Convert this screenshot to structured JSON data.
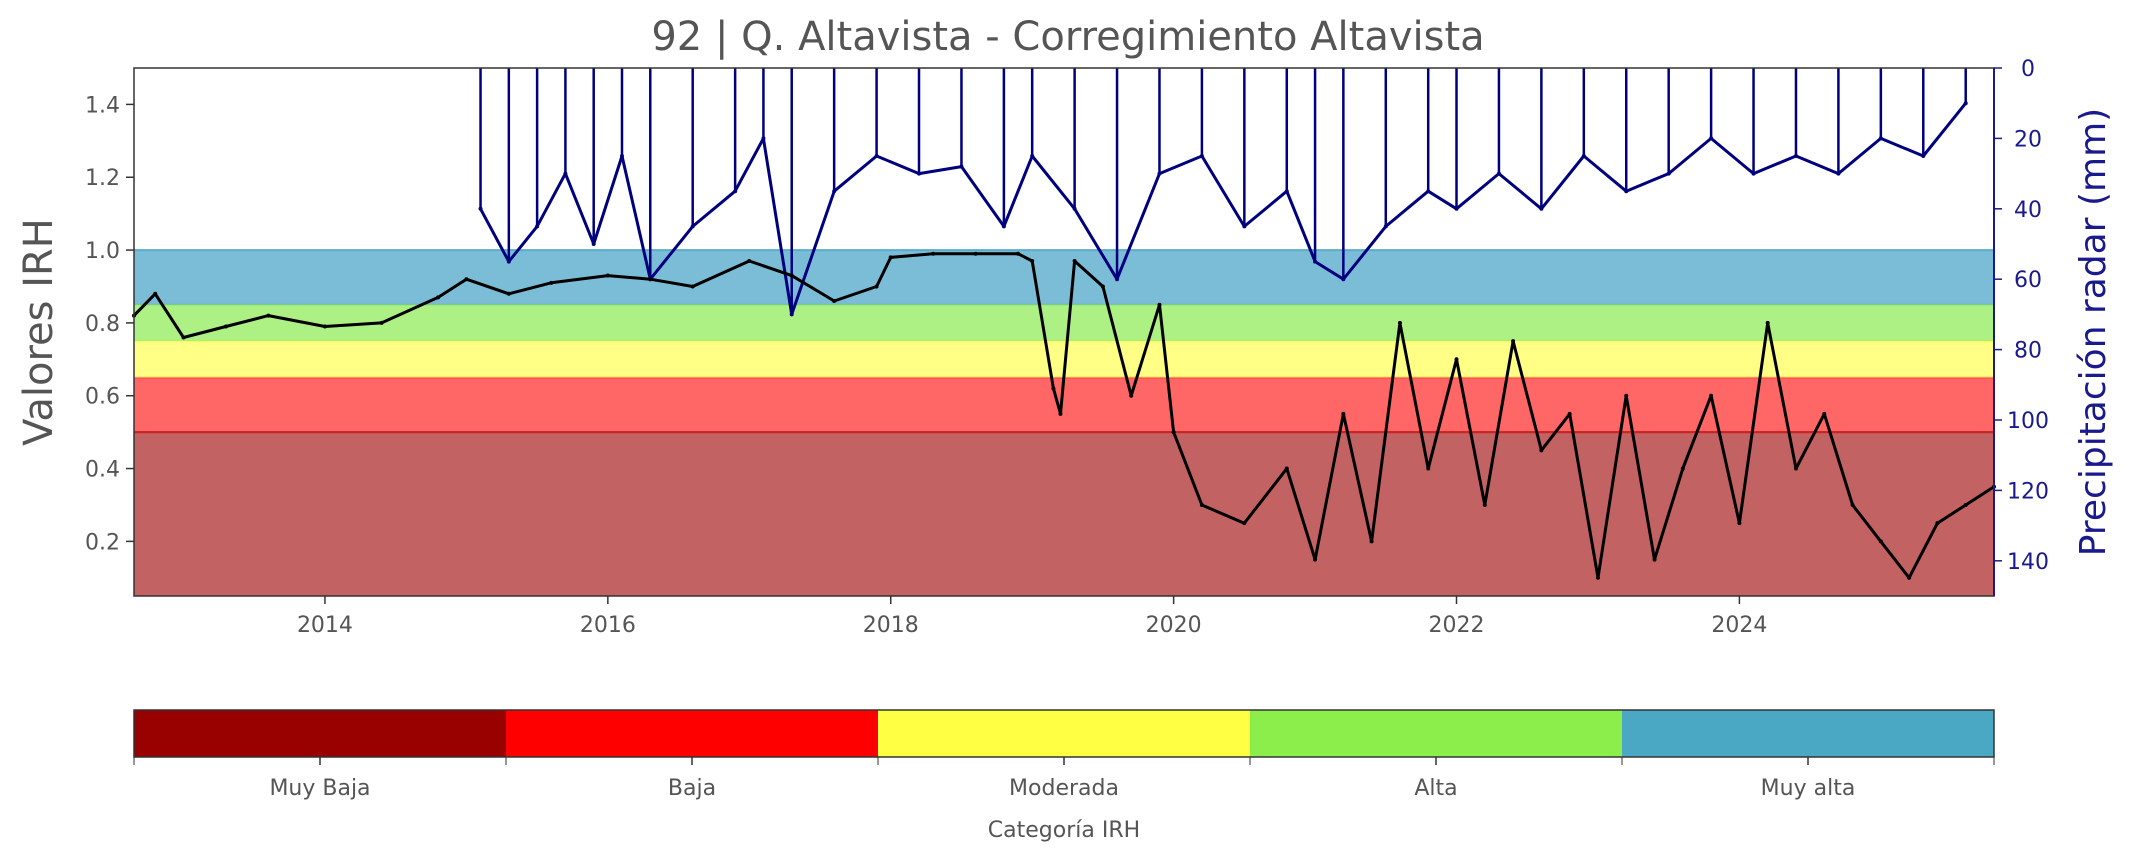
{
  "chart_data": {
    "type": "line",
    "title": "92 | Q. Altavista - Corregimiento Altavista",
    "ylabel": "Valores IRH",
    "ylabel_right": "Precipitación radar (mm)",
    "xlabel": "",
    "xlim": [
      2012.65,
      2025.8
    ],
    "ylim": [
      0.05,
      1.5
    ],
    "ylim_right": [
      150,
      0
    ],
    "x_ticks": [
      "2014",
      "2016",
      "2018",
      "2020",
      "2022",
      "2024"
    ],
    "y_ticks": [
      "0.2",
      "0.4",
      "0.6",
      "0.8",
      "1.0",
      "1.2",
      "1.4"
    ],
    "y_ticks_right": [
      "0",
      "20",
      "40",
      "60",
      "80",
      "100",
      "120",
      "140"
    ],
    "category_bands": [
      {
        "name": "Muy Baja",
        "from": 0.05,
        "to": 0.5,
        "color": "#b33b3b"
      },
      {
        "name": "Baja",
        "from": 0.5,
        "to": 0.65,
        "color": "#ff4040"
      },
      {
        "name": "Moderada",
        "from": 0.65,
        "to": 0.75,
        "color": "#ffff66"
      },
      {
        "name": "Alta",
        "from": 0.75,
        "to": 0.85,
        "color": "#99ee66"
      },
      {
        "name": "Muy alta",
        "from": 0.85,
        "to": 1.0,
        "color": "#5aaccc"
      }
    ],
    "series": [
      {
        "color": "#000000",
        "axis": "left",
        "x": [
          2012.65,
          2012.8,
          2013.0,
          2013.3,
          2013.6,
          2014.0,
          2014.4,
          2014.8,
          2015.0,
          2015.3,
          2015.6,
          2016.0,
          2016.3,
          2016.6,
          2017.0,
          2017.3,
          2017.6,
          2017.9,
          2018.0,
          2018.3,
          2018.6,
          2018.9,
          2019.0,
          2019.15,
          2019.2,
          2019.3,
          2019.5,
          2019.7,
          2019.9,
          2020.0,
          2020.2,
          2020.5,
          2020.8,
          2021.0,
          2021.2,
          2021.4,
          2021.6,
          2021.8,
          2022.0,
          2022.2,
          2022.4,
          2022.6,
          2022.8,
          2023.0,
          2023.2,
          2023.4,
          2023.6,
          2023.8,
          2024.0,
          2024.2,
          2024.4,
          2024.6,
          2024.8,
          2025.0,
          2025.2,
          2025.4,
          2025.6,
          2025.8
        ],
        "y": [
          0.82,
          0.88,
          0.76,
          0.79,
          0.82,
          0.79,
          0.8,
          0.87,
          0.92,
          0.88,
          0.91,
          0.93,
          0.92,
          0.9,
          0.97,
          0.93,
          0.86,
          0.9,
          0.98,
          0.99,
          0.99,
          0.99,
          0.97,
          0.62,
          0.55,
          0.97,
          0.9,
          0.6,
          0.85,
          0.5,
          0.3,
          0.25,
          0.4,
          0.15,
          0.55,
          0.2,
          0.8,
          0.4,
          0.7,
          0.3,
          0.75,
          0.45,
          0.55,
          0.1,
          0.6,
          0.15,
          0.4,
          0.6,
          0.25,
          0.8,
          0.4,
          0.55,
          0.3,
          0.2,
          0.1,
          0.25,
          0.3,
          0.35
        ]
      },
      {
        "color": "#00007f",
        "axis": "right",
        "x": [
          2015.1,
          2015.3,
          2015.5,
          2015.7,
          2015.9,
          2016.1,
          2016.3,
          2016.6,
          2016.9,
          2017.1,
          2017.3,
          2017.6,
          2017.9,
          2018.2,
          2018.5,
          2018.8,
          2019.0,
          2019.3,
          2019.6,
          2019.9,
          2020.2,
          2020.5,
          2020.8,
          2021.0,
          2021.2,
          2021.5,
          2021.8,
          2022.0,
          2022.3,
          2022.6,
          2022.9,
          2023.2,
          2023.5,
          2023.8,
          2024.1,
          2024.4,
          2024.7,
          2025.0,
          2025.3,
          2025.6
        ],
        "y": [
          40,
          55,
          45,
          30,
          50,
          25,
          60,
          45,
          35,
          20,
          70,
          35,
          25,
          30,
          28,
          45,
          25,
          40,
          60,
          30,
          25,
          45,
          35,
          55,
          60,
          45,
          35,
          40,
          30,
          40,
          25,
          35,
          30,
          20,
          30,
          25,
          30,
          20,
          25,
          10
        ]
      }
    ],
    "colorbar": {
      "label": "Categoría IRH",
      "categories": [
        "Muy Baja",
        "Baja",
        "Moderada",
        "Alta",
        "Muy alta"
      ],
      "colors": [
        "#990000",
        "#ff0000",
        "#ffff44",
        "#8cee4a",
        "#4aa8c4"
      ]
    }
  }
}
